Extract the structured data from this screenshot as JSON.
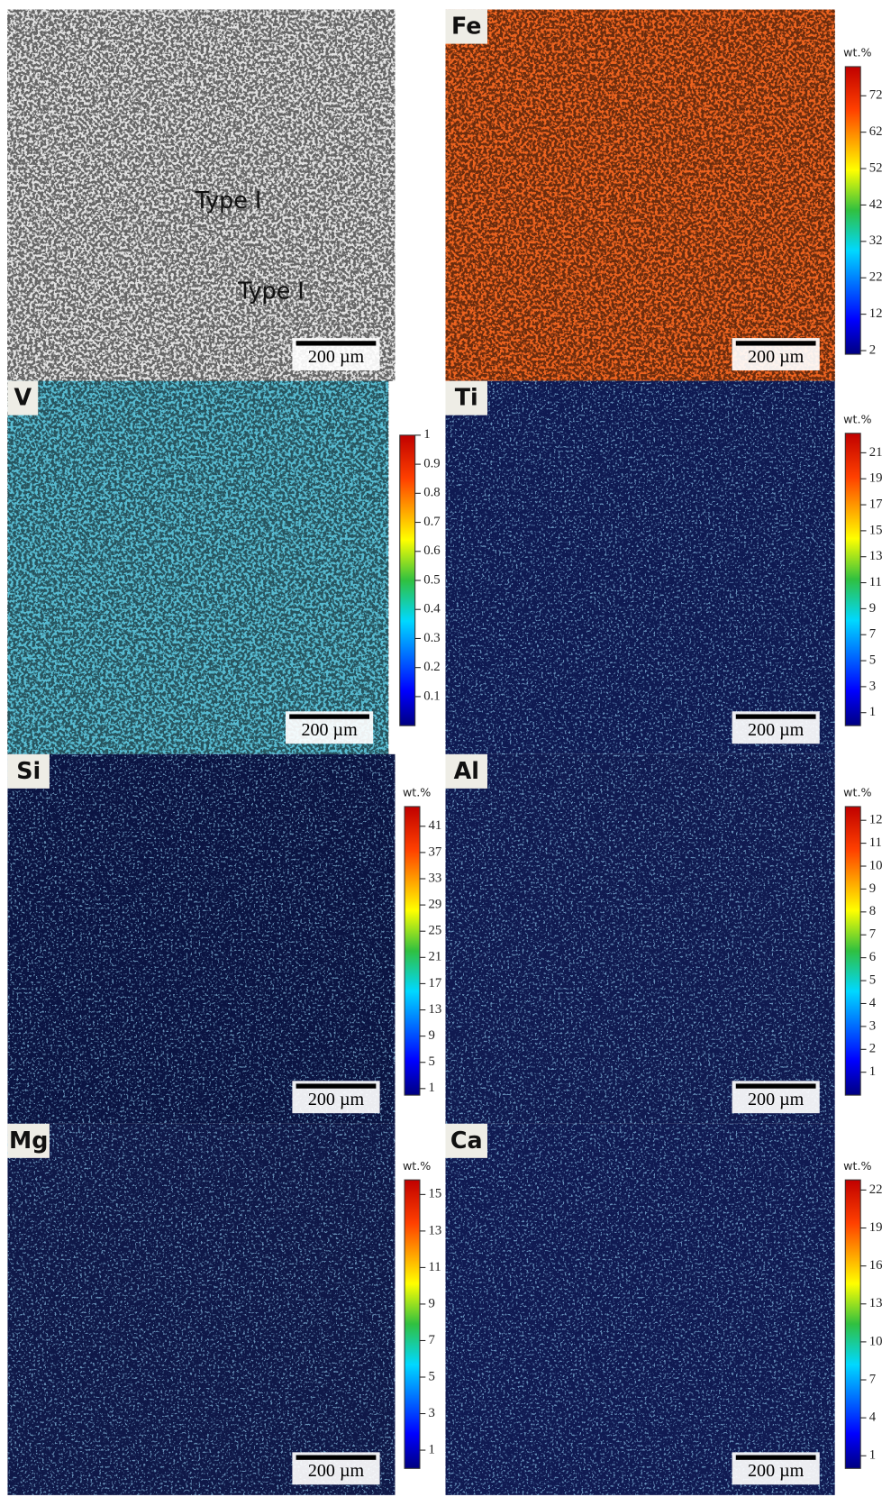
{
  "panels": [
    {
      "color": "#e2e2e2",
      "annotations": [
        "Type I",
        "Type I"
      ],
      "scale_bar": "200 µm"
    },
    {
      "label": "Fe",
      "color": "#ee6420",
      "scale_bar": "200 µm",
      "colorbar": {
        "unit": "wt.%",
        "lim": [
          1,
          80
        ],
        "ticks": [
          2,
          12,
          22,
          32,
          42,
          52,
          62,
          72
        ]
      }
    },
    {
      "label": "V",
      "color": "#58bcd2",
      "scale_bar": "200 µm",
      "colorbar": {
        "lim": [
          0,
          1
        ],
        "ticks": [
          0.1,
          0.2,
          0.3,
          0.4,
          0.5,
          0.6,
          0.7,
          0.8,
          0.9,
          1
        ]
      }
    },
    {
      "label": "Ti",
      "color": "#0f1a52",
      "scale_bar": "200 µm",
      "colorbar": {
        "unit": "wt.%",
        "lim": [
          0,
          22.5
        ],
        "ticks": [
          1,
          3,
          5,
          7,
          9,
          11,
          13,
          15,
          17,
          19,
          21
        ]
      }
    },
    {
      "label": "Si",
      "color": "#0b1442",
      "scale_bar": "200 µm",
      "colorbar": {
        "unit": "wt.%",
        "lim": [
          0,
          44
        ],
        "ticks": [
          1,
          5,
          9,
          13,
          17,
          21,
          25,
          29,
          33,
          37,
          41
        ]
      }
    },
    {
      "label": "Al",
      "color": "#101a50",
      "scale_bar": "200 µm",
      "colorbar": {
        "unit": "wt.%",
        "lim": [
          0,
          12.6
        ],
        "ticks": [
          1,
          2,
          3,
          4,
          5,
          6,
          7,
          8,
          9,
          10,
          11,
          12
        ]
      }
    },
    {
      "label": "Mg",
      "color": "#0f1848",
      "scale_bar": "200 µm",
      "colorbar": {
        "unit": "wt.%",
        "lim": [
          0,
          15.8
        ],
        "ticks": [
          1,
          3,
          5,
          7,
          9,
          11,
          13,
          15
        ]
      }
    },
    {
      "label": "Ca",
      "color": "#101a52",
      "scale_bar": "200 µm",
      "colorbar": {
        "unit": "wt.%",
        "lim": [
          0,
          22.8
        ],
        "ticks": [
          1,
          4,
          7,
          10,
          13,
          16,
          19,
          22
        ]
      }
    }
  ]
}
